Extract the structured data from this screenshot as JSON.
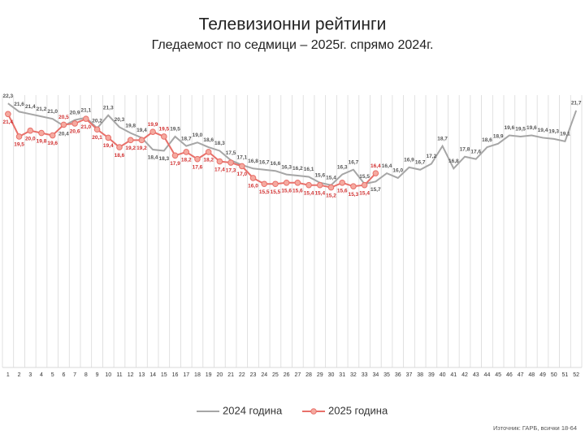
{
  "chart_data": {
    "type": "line",
    "title": "Телевизионни рейтинги",
    "subtitle": "Гледаемост по седмици – 2025г. спрямо 2024г.",
    "source": "Източник: ГАРБ, всички 18-64",
    "categories": [
      "1",
      "2",
      "3",
      "4",
      "5",
      "6",
      "7",
      "8",
      "9",
      "10",
      "11",
      "12",
      "13",
      "14",
      "15",
      "16",
      "17",
      "18",
      "19",
      "20",
      "21",
      "22",
      "23",
      "24",
      "25",
      "26",
      "27",
      "28",
      "29",
      "30",
      "31",
      "32",
      "33",
      "34",
      "35",
      "36",
      "37",
      "38",
      "39",
      "40",
      "41",
      "42",
      "43",
      "44",
      "45",
      "46",
      "47",
      "48",
      "49",
      "50",
      "51",
      "52"
    ],
    "ylim": [
      0,
      23
    ],
    "grid": true,
    "legend": "bottom",
    "series": [
      {
        "name": "2024 година",
        "color": "#a6a6a6",
        "values": [
          22.3,
          21.6,
          21.4,
          21.2,
          21.0,
          20.4,
          20.9,
          21.1,
          20.2,
          21.3,
          20.3,
          19.8,
          19.4,
          18.4,
          18.3,
          19.5,
          18.7,
          19.0,
          18.6,
          18.3,
          17.5,
          17.1,
          16.8,
          16.7,
          16.6,
          16.3,
          16.2,
          16.1,
          15.6,
          15.4,
          16.3,
          16.7,
          15.5,
          15.7,
          16.4,
          16.0,
          16.9,
          16.7,
          17.2,
          18.7,
          16.8,
          17.8,
          17.6,
          18.6,
          18.9,
          19.6,
          19.5,
          19.6,
          19.4,
          19.3,
          19.1,
          21.7
        ],
        "value_labels": [
          "22,3",
          "21,6",
          "21,4",
          "21,2",
          "21,0",
          "20,4",
          "20,9",
          "21,1",
          "20,2",
          "21,3",
          "20,3",
          "19,8",
          "19,4",
          "18,4",
          "18,3",
          "19,5",
          "18,7",
          "19,0",
          "18,6",
          "18,3",
          "17,5",
          "17,1",
          "16,8",
          "16,7",
          "16,6",
          "16,3",
          "16,2",
          "16,1",
          "15,6",
          "15,4",
          "16,3",
          "16,7",
          "15,5",
          "15,7",
          "16,4",
          "16,0",
          "16,9",
          "16,7",
          "17,2",
          "18,7",
          "16,8",
          "17,8",
          "17,6",
          "18,6",
          "18,9",
          "19,6",
          "19,5",
          "19,6",
          "19,4",
          "19,3",
          "19,1",
          "21,7"
        ]
      },
      {
        "name": "2025 година",
        "color": "#e8706a",
        "values": [
          21.4,
          19.5,
          20.0,
          19.8,
          19.6,
          20.5,
          20.6,
          21.0,
          20.1,
          19.4,
          18.6,
          19.2,
          19.2,
          19.9,
          19.5,
          17.9,
          18.2,
          17.6,
          18.2,
          17.4,
          17.3,
          17.0,
          16.0,
          15.5,
          15.5,
          15.6,
          15.6,
          15.4,
          15.4,
          15.2,
          15.6,
          15.3,
          15.4,
          16.4,
          null,
          null,
          null,
          null,
          null,
          null,
          null,
          null,
          null,
          null,
          null,
          null,
          null,
          null,
          null,
          null,
          null,
          null
        ],
        "value_labels": [
          "21,4",
          "19,5",
          "20,0",
          "19,8",
          "19,6",
          "20,5",
          "20,6",
          "21,0",
          "20,1",
          "19,4",
          "18,6",
          "19,2",
          "19,2",
          "19,9",
          "19,5",
          "17,9",
          "18,2",
          "17,6",
          "18,2",
          "17,4",
          "17,3",
          "17,0",
          "16,0",
          "15,5",
          "15,5",
          "15,6",
          "15,6",
          "15,4",
          "15,4",
          "15,2",
          "15,6",
          "15,3",
          "15,4",
          "16,4",
          null,
          null,
          null,
          null,
          null,
          null,
          null,
          null,
          null,
          null,
          null,
          null,
          null,
          null,
          null,
          null,
          null,
          null
        ]
      }
    ]
  }
}
